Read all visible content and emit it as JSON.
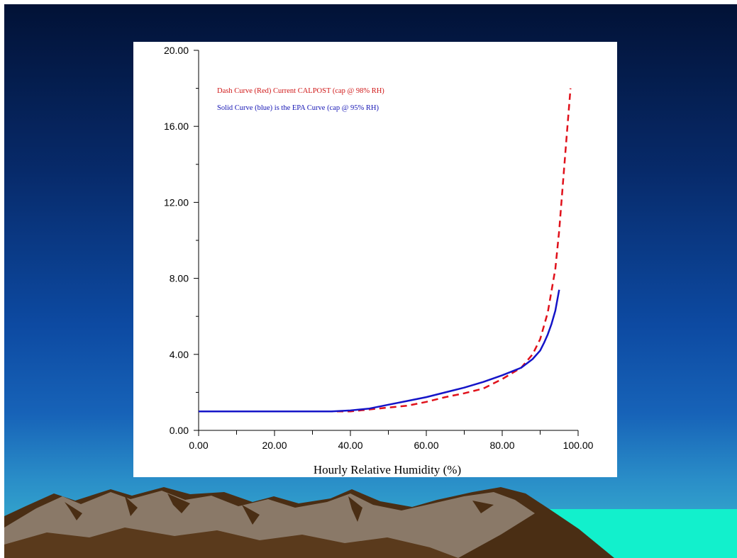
{
  "chart_data": {
    "type": "line",
    "title": "",
    "xlabel": "Hourly Relative Humidity (%)",
    "ylabel": "",
    "xlim": [
      0,
      100
    ],
    "ylim": [
      0,
      20
    ],
    "x_ticks": [
      "0.00",
      "20.00",
      "40.00",
      "60.00",
      "80.00",
      "100.00"
    ],
    "y_ticks": [
      "0.00",
      "4.00",
      "8.00",
      "12.00",
      "16.00",
      "20.00"
    ],
    "grid": false,
    "legend_position": "top-left",
    "series": [
      {
        "name": "Dash Curve (Red) Current CALPOST (cap @ 98% RH)",
        "color": "#e0101a",
        "style": "dashed",
        "x": [
          0,
          10,
          20,
          30,
          35,
          40,
          45,
          50,
          55,
          60,
          65,
          70,
          75,
          80,
          85,
          88,
          90,
          92,
          94,
          95,
          96,
          97,
          98
        ],
        "y": [
          1.0,
          1.0,
          1.0,
          1.0,
          1.0,
          1.0,
          1.1,
          1.2,
          1.3,
          1.5,
          1.75,
          1.95,
          2.2,
          2.7,
          3.3,
          4.0,
          4.8,
          6.2,
          8.5,
          10.5,
          13.0,
          15.5,
          18.0
        ]
      },
      {
        "name": "Solid Curve (blue) is the EPA Curve (cap @ 95% RH)",
        "color": "#1414c8",
        "style": "solid",
        "x": [
          0,
          10,
          20,
          30,
          35,
          40,
          45,
          50,
          55,
          60,
          65,
          70,
          75,
          80,
          85,
          88,
          90,
          91,
          92,
          93,
          94,
          95
        ],
        "y": [
          1.0,
          1.0,
          1.0,
          1.0,
          1.0,
          1.05,
          1.15,
          1.35,
          1.55,
          1.75,
          2.0,
          2.25,
          2.55,
          2.9,
          3.3,
          3.75,
          4.2,
          4.6,
          5.05,
          5.6,
          6.3,
          7.4
        ]
      }
    ]
  }
}
